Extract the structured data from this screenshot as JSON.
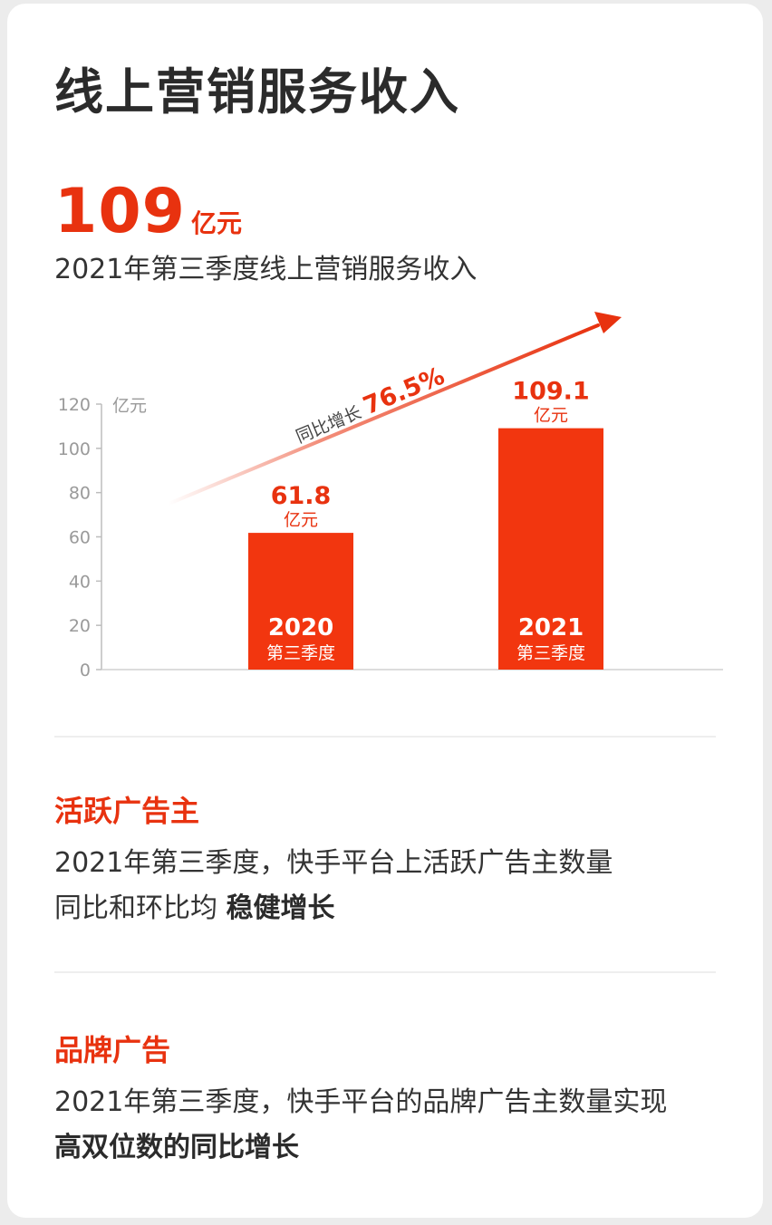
{
  "title": "线上营销服务收入",
  "headline": {
    "value": "109",
    "unit": "亿元"
  },
  "subtitle": "2021年第三季度线上营销服务收入",
  "chart_data": {
    "type": "bar",
    "categories": [
      {
        "year": "2020",
        "period": "第三季度"
      },
      {
        "year": "2021",
        "period": "第三季度"
      }
    ],
    "values": [
      61.8,
      109.1
    ],
    "value_labels": [
      "61.8",
      "109.1"
    ],
    "value_unit": "亿元",
    "ylabel": "亿元",
    "ylim": [
      0,
      120
    ],
    "yticks": [
      0,
      20,
      40,
      60,
      80,
      100,
      120
    ],
    "growth_annotation": {
      "label": "同比增长",
      "value": "76.5%"
    },
    "bar_color": "#f2360f",
    "accent_color": "#e8320f",
    "grid": false
  },
  "sections": [
    {
      "title": "活跃广告主",
      "body_line1": "2021年第三季度，快手平台上活跃广告主数量",
      "body_line2_normal": "同比和环比均 ",
      "body_line2_bold": "稳健增长"
    },
    {
      "title": "品牌广告",
      "body_line1": "2021年第三季度，快手平台的品牌广告主数量实现",
      "body_line2_normal": "",
      "body_line2_bold": "高双位数的同比增长"
    }
  ]
}
